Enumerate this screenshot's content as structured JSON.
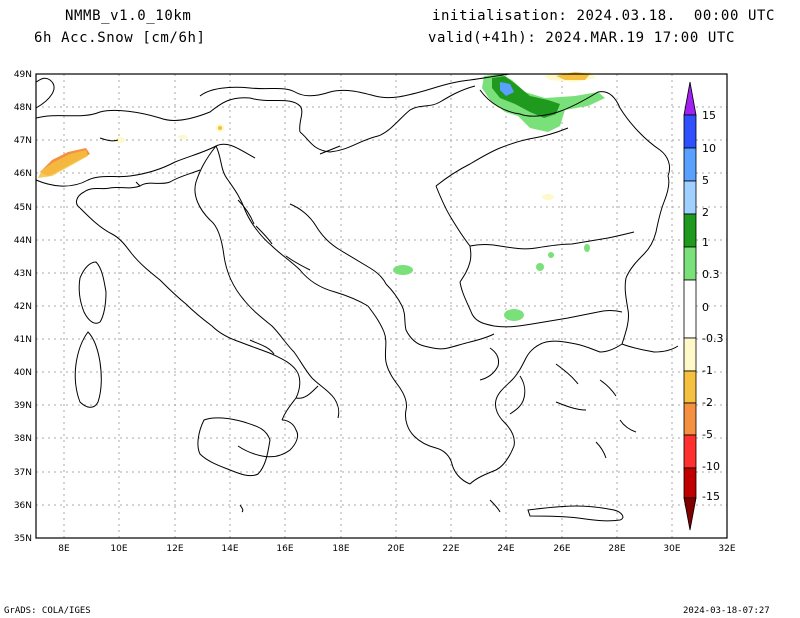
{
  "header": {
    "model": "NMMB_v1.0_10km",
    "variable": "6h Acc.Snow [cm/6h]",
    "init": "initialisation: 2024.03.18.  00:00 UTC",
    "valid": "valid(+41h): 2024.MAR.19 17:00 UTC"
  },
  "footer": {
    "left": "GrADS: COLA/IGES",
    "right": "2024-03-18-07:27"
  },
  "map": {
    "lon_ticks": [
      "8E",
      "10E",
      "12E",
      "14E",
      "16E",
      "18E",
      "20E",
      "22E",
      "24E",
      "26E",
      "28E",
      "30E",
      "32E"
    ],
    "lat_ticks": [
      "49N",
      "48N",
      "47N",
      "46N",
      "45N",
      "44N",
      "43N",
      "42N",
      "41N",
      "40N",
      "39N",
      "38N",
      "37N",
      "36N",
      "35N"
    ],
    "lon_range": [
      7,
      32
    ],
    "lat_range": [
      35,
      49
    ]
  },
  "colorbar": {
    "labels": [
      "15",
      "10",
      "5",
      "2",
      "1",
      "0.3",
      "0",
      "-0.3",
      "-1",
      "-2",
      "-5",
      "-10",
      "-15"
    ],
    "colors": [
      "#a020f0",
      "#3050ff",
      "#5aa0ff",
      "#a0d0ff",
      "#1f9a1f",
      "#7ae07a",
      "#ffffff",
      "#fff8c8",
      "#f5c040",
      "#f59040",
      "#ff3030",
      "#c00000",
      "#800000"
    ]
  }
}
